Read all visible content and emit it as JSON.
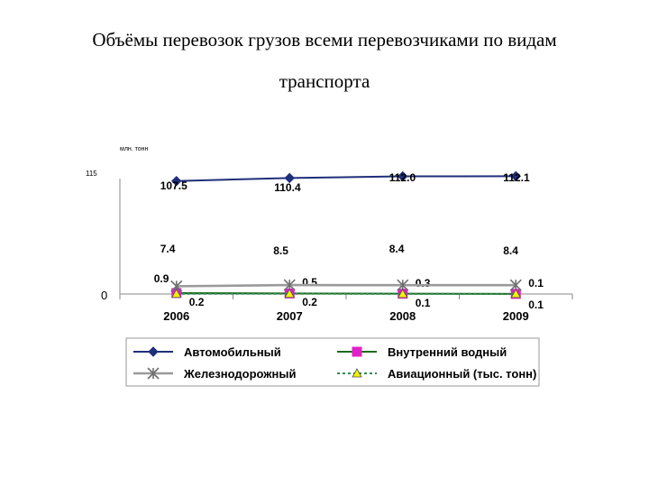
{
  "title_line1": "Объёмы перевозок грузов всеми перевозчиками  по видам",
  "title_line2": "транспорта",
  "chart_data": {
    "type": "line",
    "unit_label": "млн. тонн",
    "y_ticks": [
      "115",
      "0"
    ],
    "ylim": [
      0,
      115
    ],
    "categories": [
      "2006",
      "2007",
      "2008",
      "2009"
    ],
    "series": [
      {
        "name": "Автомобильный",
        "values": [
          107.5,
          110.4,
          112.0,
          112.1
        ],
        "labels": [
          "107.5",
          "110.4",
          "112.0",
          "112.1"
        ],
        "color": "#1f2f7a",
        "marker": "diamond",
        "dashed": false
      },
      {
        "name": "Внутренний водный",
        "values": [
          0.9,
          0.5,
          0.3,
          0.1
        ],
        "labels": [
          "0.9",
          "0.5",
          "0.3",
          "0.1"
        ],
        "color": "#1b6b1b",
        "marker": "square",
        "marker_color": "#e020c8",
        "dashed": false
      },
      {
        "name": "Железнодорожный",
        "values": [
          7.4,
          8.5,
          8.4,
          8.4
        ],
        "labels": [
          "7.4",
          "8.5",
          "8.4",
          "8.4"
        ],
        "color": "#9a9a9a",
        "marker": "star",
        "dashed": false
      },
      {
        "name": "Авиационный (тыс. тонн)",
        "values": [
          0.2,
          0.2,
          0.1,
          0.1
        ],
        "labels": [
          "0.2",
          "0.2",
          "0.1",
          "0.1"
        ],
        "color": "#2e8b57",
        "marker": "triangle",
        "marker_color": "#f2f200",
        "dashed": true
      }
    ],
    "legend_position": "bottom",
    "grid": false
  }
}
